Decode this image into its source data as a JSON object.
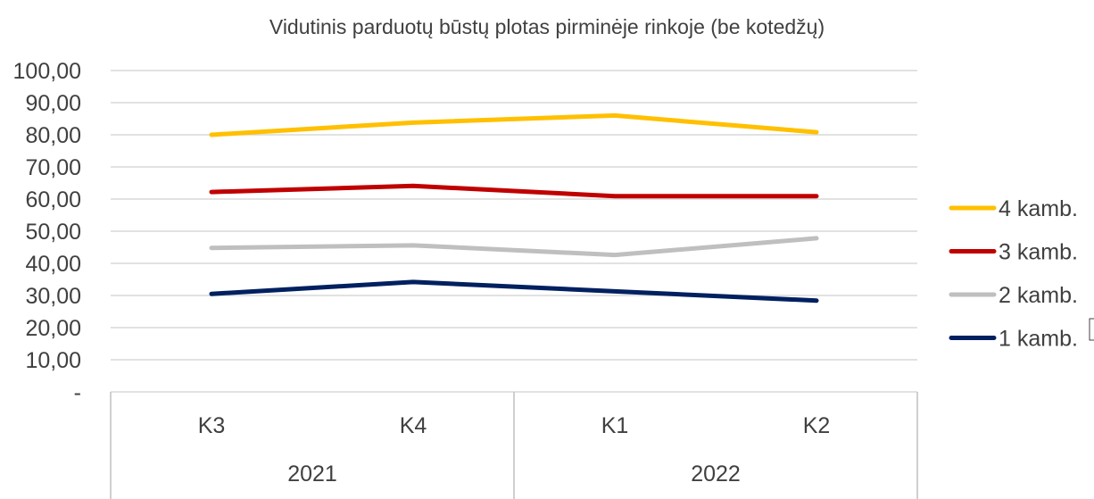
{
  "chart_data": {
    "type": "line",
    "title": "Vidutinis parduotų būstų plotas pirminėje rinkoje (be kotedžų)",
    "xlabel": "",
    "ylabel": "",
    "ylim": [
      0,
      100
    ],
    "yticks": [
      "-",
      "10,00",
      "20,00",
      "30,00",
      "40,00",
      "50,00",
      "60,00",
      "70,00",
      "80,00",
      "90,00",
      "100,00"
    ],
    "categories": [
      "K3",
      "K4",
      "K1",
      "K2"
    ],
    "groups": [
      {
        "label": "2021",
        "span": 2
      },
      {
        "label": "2022",
        "span": 2
      }
    ],
    "grid": true,
    "legend_position": "right",
    "series": [
      {
        "name": "4 kamb.",
        "color": "#FFC000",
        "values": [
          80.0,
          83.8,
          86.0,
          80.8
        ]
      },
      {
        "name": "3 kamb.",
        "color": "#C00000",
        "values": [
          62.2,
          64.1,
          60.9,
          60.9
        ]
      },
      {
        "name": "2 kamb.",
        "color": "#BFBFBF",
        "values": [
          44.8,
          45.6,
          42.6,
          47.8
        ]
      },
      {
        "name": "1 kamb.",
        "color": "#002060",
        "values": [
          30.5,
          34.2,
          31.3,
          28.4
        ]
      }
    ]
  }
}
